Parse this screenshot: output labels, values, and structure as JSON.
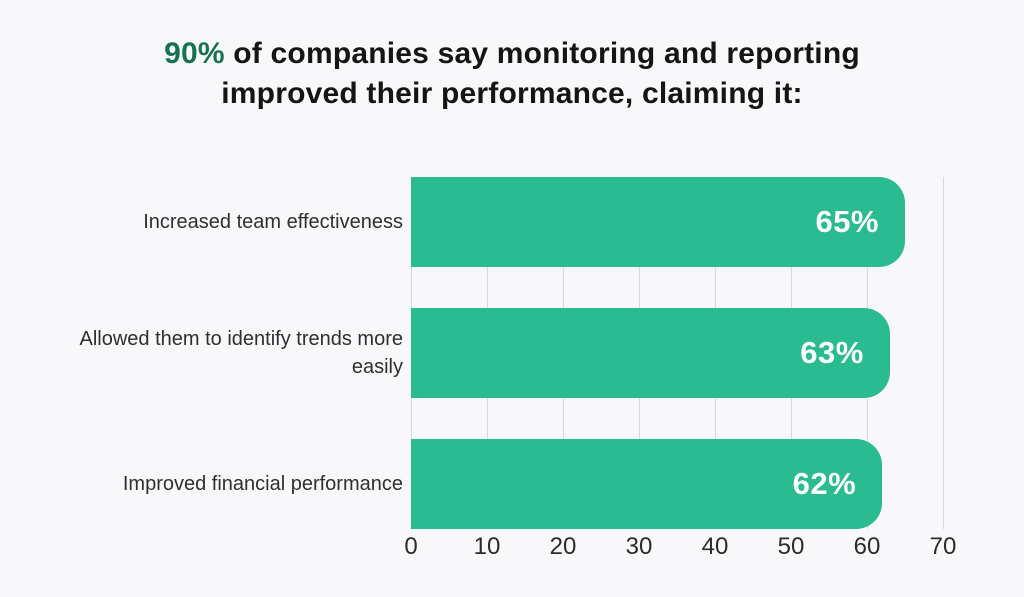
{
  "title": {
    "highlight": "90%",
    "line1_rest": " of companies say monitoring and reporting",
    "line2": "improved their performance, claiming it:"
  },
  "colors": {
    "background": "#f8f8fa",
    "bar": "#2abb90",
    "title_highlight": "#17724f",
    "title_text": "#151515",
    "label_text": "#2f2f2f",
    "axis_text": "#2b2b2b",
    "gridline": "#d9d9dc",
    "value_text": "#ffffff"
  },
  "chart_data": {
    "type": "bar",
    "orientation": "horizontal",
    "title": "90% of companies say monitoring and reporting improved their performance, claiming it:",
    "categories": [
      "Increased team effectiveness",
      "Allowed them to identify trends more easily",
      "Improved financial performance"
    ],
    "values": [
      65,
      63,
      62
    ],
    "value_labels": [
      "65%",
      "63%",
      "62%"
    ],
    "x_ticks": [
      0,
      10,
      20,
      30,
      40,
      50,
      60,
      70
    ],
    "xlim": [
      0,
      70
    ],
    "xlabel": "",
    "ylabel": "",
    "grid": "vertical",
    "legend": "none"
  }
}
